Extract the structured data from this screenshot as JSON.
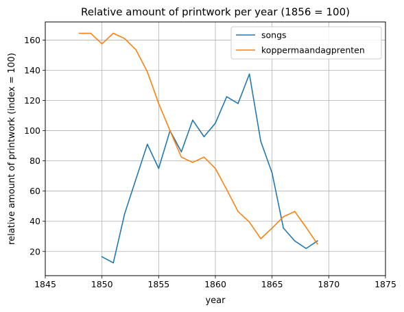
{
  "chart_data": {
    "type": "line",
    "title": "Relative amount of printwork per year (1856 = 100)",
    "xlabel": "year",
    "ylabel": "relative amount of printwork (index = 100)",
    "xlim": [
      1845,
      1875
    ],
    "ylim": [
      4,
      172
    ],
    "xticks": [
      1845,
      1850,
      1855,
      1860,
      1865,
      1870,
      1875
    ],
    "yticks": [
      20,
      40,
      60,
      80,
      100,
      120,
      140,
      160
    ],
    "grid": true,
    "legend_position": "top-right",
    "series": [
      {
        "name": "songs",
        "color": "#1f77b4",
        "x": [
          1850,
          1851,
          1852,
          1853,
          1854,
          1855,
          1856,
          1857,
          1858,
          1859,
          1860,
          1861,
          1862,
          1863,
          1864,
          1865,
          1866,
          1867,
          1868,
          1869
        ],
        "y": [
          16.5,
          12.5,
          45,
          68,
          91,
          75,
          100,
          86,
          107,
          96,
          105,
          122.5,
          118,
          137.5,
          93,
          72,
          35.5,
          27,
          22,
          27
        ]
      },
      {
        "name": "koppermaandagprenten",
        "color": "#ff7f0e",
        "x": [
          1848,
          1849,
          1850,
          1851,
          1852,
          1853,
          1854,
          1855,
          1856,
          1857,
          1858,
          1859,
          1860,
          1861,
          1862,
          1863,
          1864,
          1865,
          1866,
          1867,
          1868,
          1869
        ],
        "y": [
          164.5,
          164.5,
          157.5,
          164.5,
          161,
          153.5,
          139,
          118,
          100,
          82.5,
          79,
          82.5,
          75,
          61,
          46.5,
          39.5,
          28.5,
          35.5,
          43,
          46.5,
          36,
          25
        ]
      }
    ]
  }
}
